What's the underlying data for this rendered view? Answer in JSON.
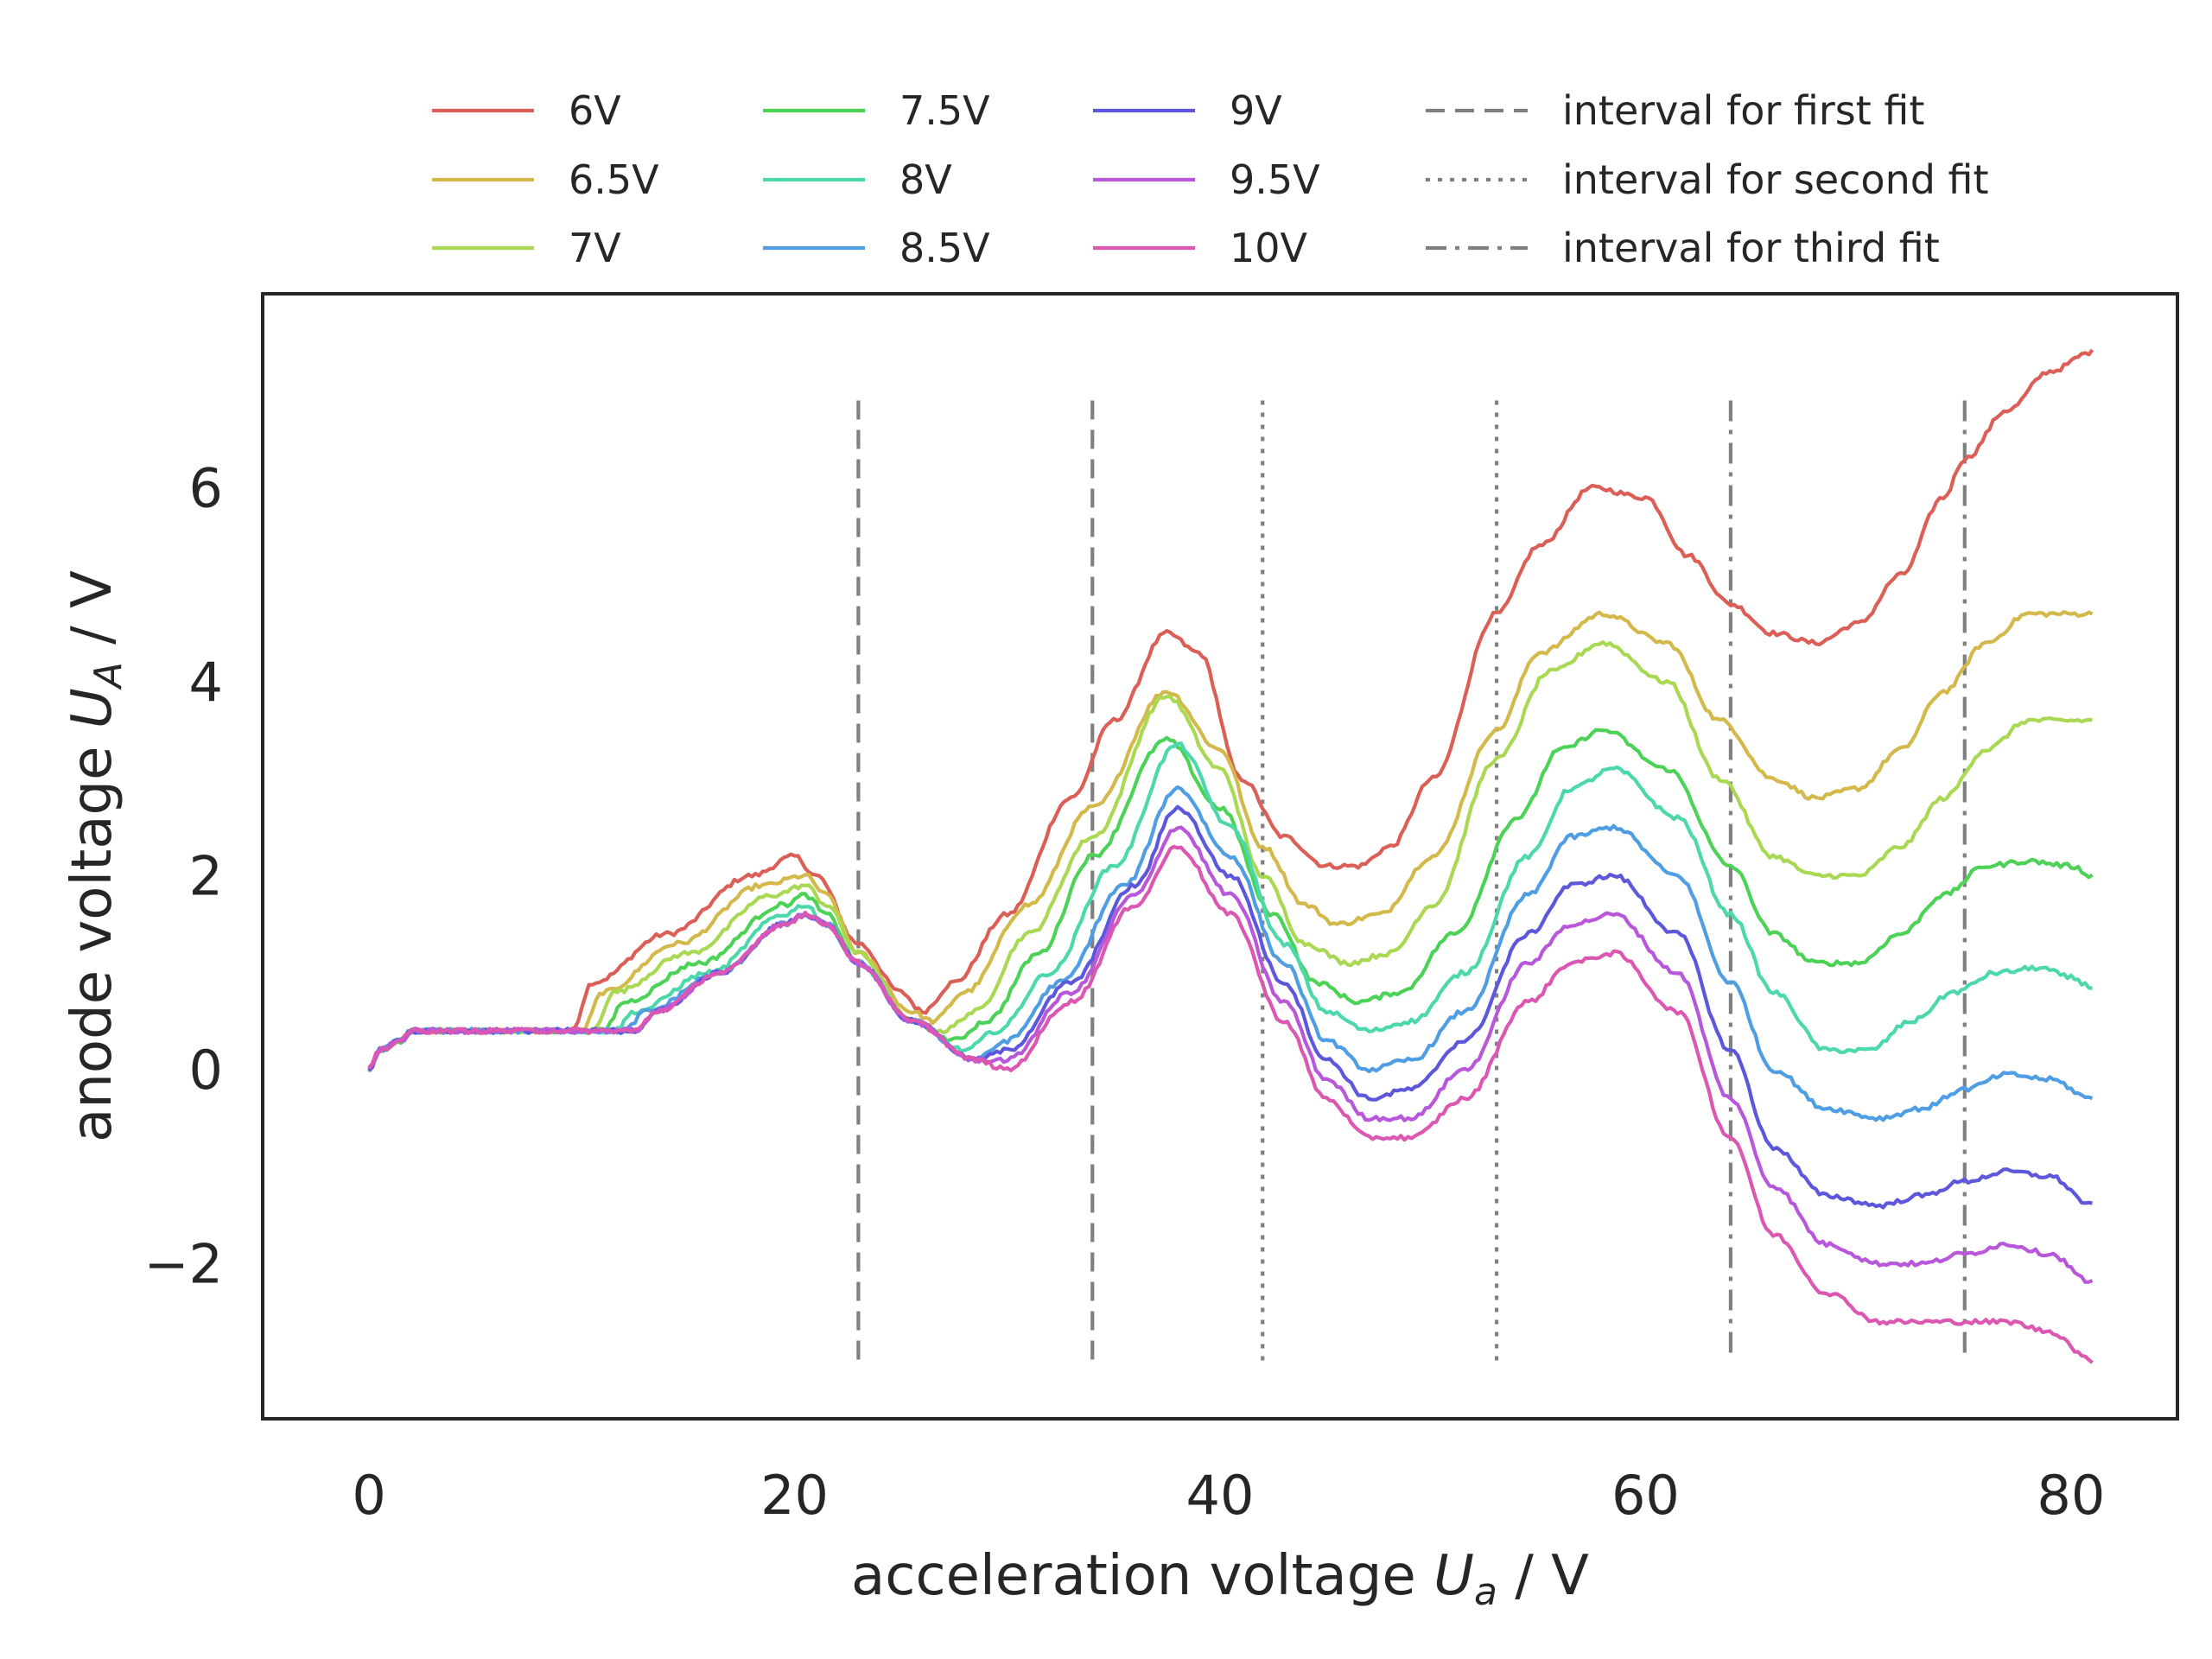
{
  "chart_data": {
    "type": "line",
    "title": "",
    "xlabel": {
      "prefix": "acceleration voltage ",
      "sym": "U",
      "sub": "a",
      "suffix": " / V"
    },
    "ylabel": {
      "prefix": "anode voltage ",
      "sym": "U",
      "sub": "A",
      "suffix": " / V"
    },
    "xlim": [
      -5,
      85
    ],
    "ylim": [
      -3.6,
      8.0
    ],
    "xticks": [
      0,
      20,
      40,
      60,
      80
    ],
    "yticks": [
      -2,
      0,
      2,
      4,
      6
    ],
    "xtick_labels": [
      "0",
      "20",
      "40",
      "60",
      "80"
    ],
    "ytick_labels": [
      "−2",
      "0",
      "2",
      "4",
      "6"
    ],
    "grid": false,
    "legend_position": "top",
    "series": [
      {
        "name": "6V",
        "color": "#db5f57",
        "x": [
          0,
          0.5,
          1.5,
          2,
          9.5,
          10.5,
          14,
          18,
          20,
          21,
          23,
          25,
          26,
          27.5,
          30,
          33,
          35,
          37.5,
          39,
          41,
          43,
          45,
          46.5,
          48,
          50,
          53,
          55,
          57.5,
          60,
          62,
          64,
          66,
          68,
          70,
          72,
          74,
          75,
          77,
          79,
          81
        ],
        "y": [
          0,
          0.2,
          0.3,
          0.4,
          0.4,
          0.9,
          1.4,
          2.0,
          2.2,
          2.0,
          1.3,
          0.8,
          0.6,
          0.9,
          1.6,
          2.8,
          3.6,
          4.5,
          4.3,
          3.0,
          2.4,
          2.1,
          2.1,
          2.3,
          3.0,
          4.7,
          5.4,
          6.0,
          5.9,
          5.3,
          4.8,
          4.5,
          4.4,
          4.6,
          5.1,
          5.9,
          6.3,
          6.8,
          7.2,
          7.4
        ]
      },
      {
        "name": "6.5V",
        "color": "#d3b84a",
        "x": [
          0,
          0.5,
          1.5,
          2,
          10,
          11,
          14.5,
          18.5,
          20.5,
          21.5,
          23,
          25.5,
          26.5,
          28,
          31,
          34,
          37.5,
          40,
          42,
          44,
          45.5,
          47.5,
          50,
          53,
          55,
          58,
          61,
          63.5,
          66,
          68,
          70,
          72,
          74,
          76,
          78,
          80,
          81
        ],
        "y": [
          0,
          0.2,
          0.3,
          0.4,
          0.4,
          0.8,
          1.3,
          1.9,
          2.0,
          1.8,
          1.2,
          0.6,
          0.5,
          0.8,
          1.7,
          2.7,
          3.9,
          3.3,
          2.3,
          1.7,
          1.5,
          1.6,
          2.2,
          3.5,
          4.3,
          4.7,
          4.4,
          3.6,
          3.0,
          2.8,
          2.9,
          3.3,
          3.9,
          4.4,
          4.7,
          4.7,
          4.7
        ]
      },
      {
        "name": "7V",
        "color": "#a9d852",
        "x": [
          0,
          0.5,
          1.5,
          2,
          10.5,
          11.5,
          15,
          19,
          20.5,
          21.5,
          23,
          25.5,
          27,
          28.5,
          31,
          34,
          37.5,
          40,
          42,
          44,
          46,
          48,
          50,
          53,
          55.5,
          58,
          61,
          63.5,
          66,
          68,
          70,
          72,
          74,
          76,
          78,
          80,
          81
        ],
        "y": [
          0,
          0.2,
          0.3,
          0.4,
          0.4,
          0.8,
          1.2,
          1.8,
          1.9,
          1.7,
          1.2,
          0.5,
          0.4,
          0.6,
          1.4,
          2.4,
          3.85,
          3.1,
          2.0,
          1.3,
          1.1,
          1.2,
          1.7,
          3.2,
          4.1,
          4.4,
          4.0,
          3.0,
          2.2,
          2.0,
          2.0,
          2.3,
          2.8,
          3.3,
          3.6,
          3.6,
          3.6
        ]
      },
      {
        "name": "7.5V",
        "color": "#4cd357",
        "x": [
          0,
          0.5,
          1.5,
          2,
          11,
          12,
          15.5,
          19.5,
          20.5,
          21.5,
          23,
          25.5,
          27.5,
          29,
          31.5,
          34,
          37.5,
          40,
          42.5,
          44.5,
          46.5,
          48.5,
          51,
          54,
          56,
          58,
          61,
          64,
          66,
          68,
          70,
          72,
          74,
          76,
          78,
          80,
          81
        ],
        "y": [
          0,
          0.2,
          0.3,
          0.4,
          0.4,
          0.7,
          1.1,
          1.7,
          1.8,
          1.6,
          1.1,
          0.5,
          0.3,
          0.5,
          1.2,
          2.2,
          3.4,
          2.7,
          1.6,
          0.9,
          0.7,
          0.8,
          1.4,
          2.6,
          3.3,
          3.5,
          3.1,
          2.1,
          1.4,
          1.1,
          1.1,
          1.4,
          1.8,
          2.1,
          2.15,
          2.1,
          2.0
        ]
      },
      {
        "name": "8V",
        "color": "#4dd8ab",
        "x": [
          0,
          0.5,
          1.5,
          2,
          11.5,
          12.5,
          16,
          19.5,
          20.5,
          21.5,
          23,
          25.5,
          28,
          29.5,
          32,
          35,
          38,
          40.5,
          43,
          45,
          47,
          49,
          51.5,
          54.5,
          56.5,
          58.5,
          61.5,
          64,
          66,
          68.5,
          70.5,
          72.5,
          74.5,
          76.5,
          78.5,
          80,
          81
        ],
        "y": [
          0,
          0.2,
          0.3,
          0.4,
          0.4,
          0.6,
          1.0,
          1.6,
          1.7,
          1.5,
          1.1,
          0.5,
          0.2,
          0.4,
          1.0,
          2.1,
          3.35,
          2.5,
          1.3,
          0.6,
          0.4,
          0.5,
          1.0,
          2.2,
          2.9,
          3.1,
          2.6,
          1.6,
          0.8,
          0.2,
          0.2,
          0.5,
          0.8,
          1.0,
          1.05,
          0.95,
          0.85
        ]
      },
      {
        "name": "8.5V",
        "color": "#4f9de3",
        "x": [
          0,
          0.5,
          1.5,
          2,
          12,
          13,
          16.5,
          19.5,
          20.5,
          21.5,
          23,
          25.5,
          28.5,
          30,
          32.5,
          35.5,
          38,
          40.5,
          43,
          45,
          47,
          49,
          51.5,
          54.5,
          56.5,
          58.5,
          61.5,
          64,
          66,
          68.5,
          71,
          73,
          75,
          77,
          79,
          81
        ],
        "y": [
          0,
          0.2,
          0.3,
          0.4,
          0.4,
          0.6,
          1.0,
          1.5,
          1.6,
          1.5,
          1.1,
          0.5,
          0.1,
          0.3,
          0.9,
          1.9,
          2.9,
          2.2,
          1.1,
          0.3,
          0.0,
          0.1,
          0.6,
          1.8,
          2.4,
          2.5,
          2.0,
          0.9,
          0.0,
          -0.4,
          -0.5,
          -0.4,
          -0.2,
          -0.05,
          -0.1,
          -0.3
        ]
      },
      {
        "name": "9V",
        "color": "#5d57dc",
        "x": [
          0,
          0.5,
          1.5,
          2,
          12.5,
          13.5,
          16.5,
          19.5,
          20.5,
          21.5,
          23,
          25.5,
          28.5,
          30,
          33,
          36,
          38,
          40.5,
          43,
          45,
          47,
          49,
          51.5,
          54.5,
          56.5,
          58.5,
          61.5,
          64,
          66,
          68.5,
          71,
          73,
          75,
          77,
          79,
          81
        ],
        "y": [
          0,
          0.2,
          0.3,
          0.4,
          0.4,
          0.6,
          1.0,
          1.5,
          1.6,
          1.5,
          1.1,
          0.5,
          0.1,
          0.2,
          0.9,
          1.9,
          2.7,
          2.0,
          0.9,
          0.1,
          -0.3,
          -0.2,
          0.3,
          1.4,
          1.9,
          2.0,
          1.4,
          0.2,
          -0.8,
          -1.3,
          -1.4,
          -1.3,
          -1.15,
          -1.05,
          -1.1,
          -1.4
        ]
      },
      {
        "name": "9.5V",
        "color": "#b957db",
        "x": [
          0,
          0.5,
          1.5,
          2,
          12.5,
          13.5,
          16.5,
          19.5,
          20.5,
          21.5,
          23,
          25.5,
          28.5,
          30,
          33,
          36,
          38,
          40.5,
          43,
          45,
          47,
          49,
          51.5,
          54.5,
          56.5,
          58.5,
          61.5,
          64,
          66,
          68.5,
          71,
          73,
          75,
          77,
          79,
          81
        ],
        "y": [
          0,
          0.2,
          0.3,
          0.4,
          0.4,
          0.6,
          1.0,
          1.5,
          1.6,
          1.5,
          1.1,
          0.5,
          0.1,
          0.1,
          0.8,
          1.8,
          2.5,
          1.8,
          0.7,
          -0.1,
          -0.5,
          -0.5,
          0.0,
          1.1,
          1.5,
          1.6,
          1.0,
          -0.3,
          -1.2,
          -1.8,
          -2.0,
          -2.0,
          -1.9,
          -1.8,
          -1.9,
          -2.2
        ]
      },
      {
        "name": "10V",
        "color": "#db57b2",
        "x": [
          0,
          0.5,
          1.5,
          2,
          12.5,
          13.5,
          16.5,
          19.5,
          20.5,
          21.5,
          23,
          25.5,
          28.5,
          30,
          33,
          36,
          38,
          40.5,
          43,
          45,
          47,
          49,
          51.5,
          54.5,
          56.5,
          58.5,
          61.5,
          64,
          66,
          68.5,
          71,
          73,
          75,
          77,
          79,
          81
        ],
        "y": [
          0,
          0.2,
          0.3,
          0.4,
          0.4,
          0.6,
          1.0,
          1.5,
          1.6,
          1.5,
          1.1,
          0.5,
          0.1,
          0.0,
          0.7,
          1.7,
          2.3,
          1.6,
          0.5,
          -0.3,
          -0.7,
          -0.7,
          -0.3,
          0.7,
          1.1,
          1.2,
          0.6,
          -0.7,
          -1.7,
          -2.3,
          -2.6,
          -2.6,
          -2.6,
          -2.6,
          -2.7,
          -3.0
        ]
      }
    ],
    "vlines": [
      {
        "name": "interval for first fit",
        "style": "dashed",
        "color": "#808080",
        "x": [
          23,
          34
        ]
      },
      {
        "name": "interval for second fit",
        "style": "dotted",
        "color": "#808080",
        "x": [
          42,
          53
        ]
      },
      {
        "name": "interval for third fit",
        "style": "dashdot",
        "color": "#808080",
        "x": [
          64,
          75
        ]
      }
    ],
    "vline_ymin": -3.0,
    "vline_ymax": 6.9
  }
}
